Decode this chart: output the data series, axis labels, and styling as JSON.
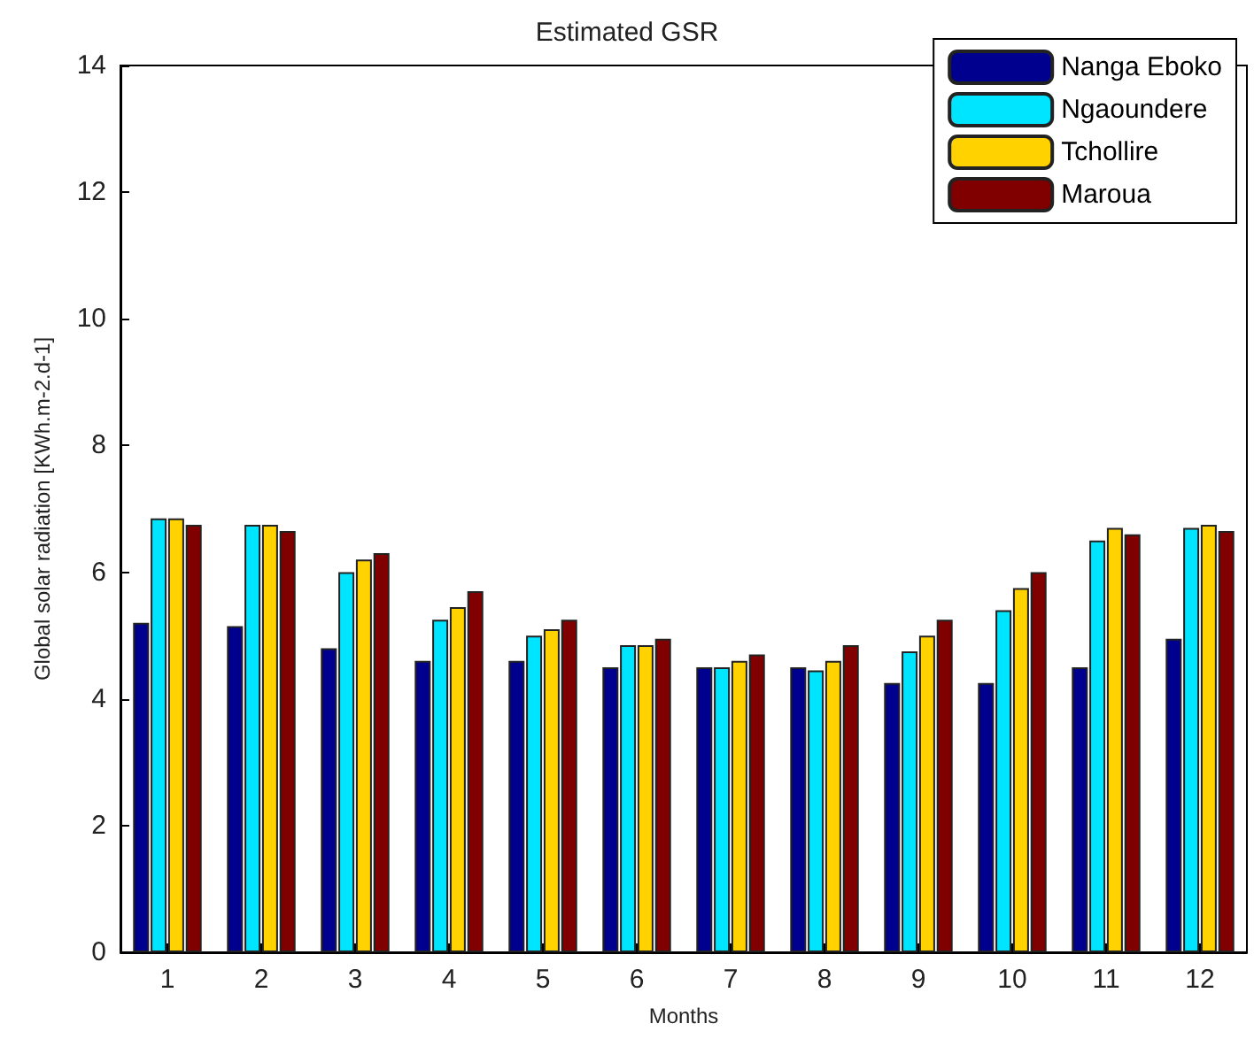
{
  "chart_data": {
    "type": "bar",
    "title": "Estimated GSR",
    "xlabel": "Months",
    "ylabel": "Global solar radiation [KWh.m-2.d-1]",
    "categories": [
      "1",
      "2",
      "3",
      "4",
      "5",
      "6",
      "7",
      "8",
      "9",
      "10",
      "11",
      "12"
    ],
    "series": [
      {
        "name": "Nanga Eboko",
        "color": "#00008f",
        "values": [
          5.2,
          5.15,
          4.8,
          4.6,
          4.6,
          4.5,
          4.5,
          4.5,
          4.25,
          4.25,
          4.5,
          4.95
        ]
      },
      {
        "name": "Ngaoundere",
        "color": "#00e5ff",
        "values": [
          6.85,
          6.75,
          6.0,
          5.25,
          5.0,
          4.85,
          4.5,
          4.45,
          4.75,
          5.4,
          6.5,
          6.7
        ]
      },
      {
        "name": "Tchollire",
        "color": "#ffd200",
        "values": [
          6.85,
          6.75,
          6.2,
          5.45,
          5.1,
          4.85,
          4.6,
          4.6,
          5.0,
          5.75,
          6.7,
          6.75
        ]
      },
      {
        "name": "Maroua",
        "color": "#800000",
        "values": [
          6.75,
          6.65,
          6.3,
          5.7,
          5.25,
          4.95,
          4.7,
          4.85,
          5.25,
          6.0,
          6.6,
          6.65
        ]
      }
    ],
    "ylim": [
      0,
      14
    ],
    "yticks": [
      0,
      2,
      4,
      6,
      8,
      10,
      12,
      14
    ],
    "grid": false,
    "legend": "top right"
  }
}
